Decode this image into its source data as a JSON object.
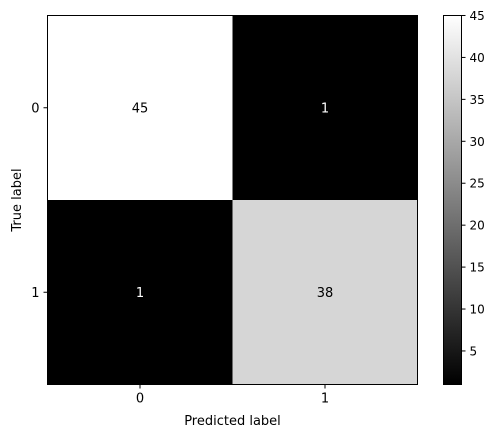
{
  "chart_data": {
    "type": "heatmap",
    "x_categories": [
      "0",
      "1"
    ],
    "y_categories": [
      "0",
      "1"
    ],
    "values": [
      [
        45,
        1
      ],
      [
        1,
        38
      ]
    ],
    "xlabel": "Predicted label",
    "ylabel": "True label",
    "colormap": "gray",
    "color_range": [
      1,
      45
    ],
    "colorbar_ticks": [
      5,
      10,
      15,
      20,
      25,
      30,
      35,
      40,
      45
    ],
    "colorbar_ticklabels": [
      "5",
      "10",
      "15",
      "20",
      "25",
      "30",
      "35",
      "40",
      "45"
    ],
    "cell_text_colors": {
      "light_cell": "#000000",
      "dark_cell": "#ffffff"
    }
  }
}
